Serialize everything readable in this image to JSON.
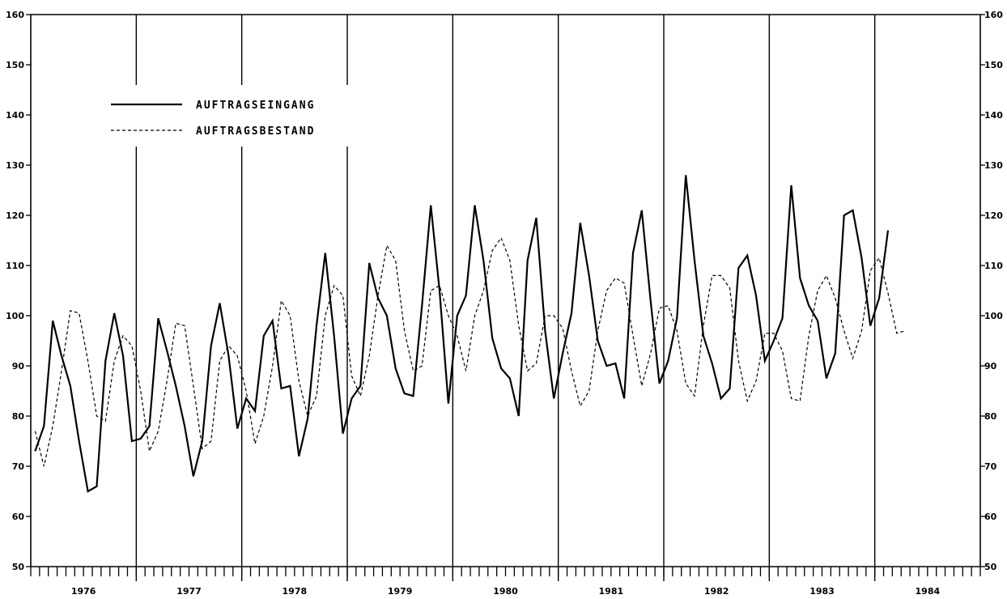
{
  "chart_data": {
    "type": "line",
    "title": "",
    "xlabel": "",
    "ylabel": "",
    "x_start": "1976-01",
    "x_end": "1984-12",
    "ylim": [
      50,
      160
    ],
    "y_ticks": [
      "50",
      "60",
      "70",
      "80",
      "90",
      "100",
      "110",
      "120",
      "130",
      "140",
      "150",
      "160"
    ],
    "year_labels": [
      "1976",
      "1977",
      "1978",
      "1979",
      "1980",
      "1981",
      "1982",
      "1983",
      "1984"
    ],
    "legend_position": "top-left",
    "grid": "vertical year dividers",
    "series": [
      {
        "name": "AUFTRAGSEINGANG",
        "style": "solid",
        "values": [
          73,
          78,
          99,
          92,
          86,
          75,
          65,
          66,
          91,
          100.5,
          92,
          75,
          75.5,
          78,
          99.5,
          93,
          86,
          78,
          68,
          75,
          94,
          102.5,
          92,
          77.5,
          83.5,
          81,
          96,
          99,
          85.5,
          86,
          72,
          79.5,
          98,
          112.5,
          96,
          76.5,
          83.5,
          86,
          110.5,
          103.5,
          100,
          89.5,
          84.5,
          84,
          102,
          122,
          105,
          82.5,
          100,
          104,
          122,
          111,
          95.5,
          89.5,
          87.5,
          80,
          111,
          119.5,
          97,
          83.5,
          92.5,
          100.5,
          118.5,
          108,
          95,
          90,
          90.5,
          83.5,
          112.5,
          121,
          103,
          86.5,
          91,
          99.5,
          128,
          111,
          96,
          90.5,
          83.5,
          85.5,
          109.5,
          112,
          104,
          91,
          95,
          99.5,
          126,
          107.5,
          102,
          99,
          87.5,
          92.5,
          120,
          121,
          111.5,
          98,
          103.5,
          117
        ]
      },
      {
        "name": "AUFTRAGSBESTAND",
        "style": "dashed",
        "values": [
          77,
          70,
          78,
          89,
          101,
          100.5,
          91,
          80,
          79,
          91,
          96,
          94,
          85,
          73,
          77,
          87,
          98.5,
          98,
          86,
          73.5,
          75,
          91,
          94,
          92,
          85,
          74.5,
          80,
          90,
          103,
          100,
          87,
          80,
          84,
          100,
          106,
          104,
          88,
          84,
          92,
          104,
          114,
          111,
          97,
          89,
          90,
          105,
          106,
          100,
          96,
          89,
          100,
          105,
          113,
          115.5,
          111,
          98,
          89,
          90.5,
          100,
          100,
          97.5,
          89,
          82,
          85,
          97,
          105,
          107.5,
          106.5,
          96,
          86,
          92.5,
          101.5,
          102,
          97,
          86.5,
          84,
          98,
          108,
          108,
          105.5,
          91,
          83,
          87,
          96.5,
          96.5,
          93,
          83.5,
          83,
          96,
          105,
          108,
          103.5,
          97,
          91.5,
          97,
          109,
          111.5,
          104.5,
          96.5,
          97
        ]
      }
    ]
  }
}
